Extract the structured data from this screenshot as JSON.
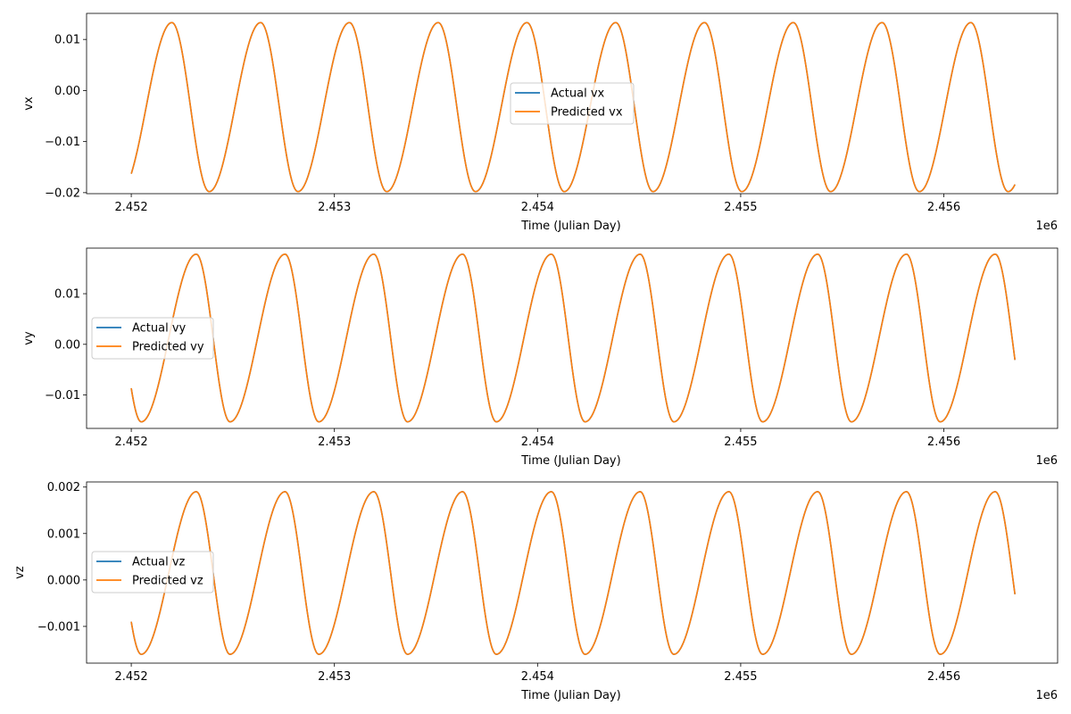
{
  "colors": {
    "actual": "#1f77b4",
    "predicted": "#ff7f0e",
    "axis": "#000000",
    "legend_border": "#cccccc",
    "background": "#ffffff"
  },
  "chart_data": [
    {
      "type": "line",
      "title": "",
      "xlabel": "Time (Julian Day)",
      "ylabel": "vx",
      "x_offset_label": "1e6",
      "x_ticks": [
        2.452,
        2.453,
        2.454,
        2.455,
        2.456
      ],
      "x_tick_labels": [
        "2.452",
        "2.453",
        "2.454",
        "2.455",
        "2.456"
      ],
      "y_ticks": [
        -0.02,
        -0.01,
        0.0,
        0.01
      ],
      "y_tick_labels": [
        "−0.02",
        "−0.01",
        "0.00",
        "0.01"
      ],
      "xlim": [
        2.45178,
        2.45656
      ],
      "ylim": [
        -0.0202,
        0.0151
      ],
      "legend": "center",
      "grid": false,
      "series": [
        {
          "name": "Actual vx",
          "color": "#1f77b4"
        },
        {
          "name": "Predicted vx",
          "color": "#ff7f0e"
        }
      ],
      "signal": {
        "x_start": 2.452,
        "x_end": 2.45635,
        "period": 0.000437,
        "min": -0.0198,
        "max": 0.0133,
        "first_max_x": 2.4522,
        "end_value": -0.0193
      }
    },
    {
      "type": "line",
      "title": "",
      "xlabel": "Time (Julian Day)",
      "ylabel": "vy",
      "x_offset_label": "1e6",
      "x_ticks": [
        2.452,
        2.453,
        2.454,
        2.455,
        2.456
      ],
      "x_tick_labels": [
        "2.452",
        "2.453",
        "2.454",
        "2.455",
        "2.456"
      ],
      "y_ticks": [
        -0.01,
        0.0,
        0.01
      ],
      "y_tick_labels": [
        "−0.01",
        "0.00",
        "0.01"
      ],
      "xlim": [
        2.45178,
        2.45656
      ],
      "ylim": [
        -0.0166,
        0.019
      ],
      "legend": "center-left",
      "grid": false,
      "series": [
        {
          "name": "Actual vy",
          "color": "#1f77b4"
        },
        {
          "name": "Predicted vy",
          "color": "#ff7f0e"
        }
      ],
      "signal": {
        "x_start": 2.452,
        "x_end": 2.45635,
        "period": 0.000437,
        "min": -0.0153,
        "max": 0.0178,
        "first_max_x": 2.45232,
        "start_value": -0.0089,
        "end_value": -0.0027
      }
    },
    {
      "type": "line",
      "title": "",
      "xlabel": "Time (Julian Day)",
      "ylabel": "vz",
      "x_offset_label": "1e6",
      "x_ticks": [
        2.452,
        2.453,
        2.454,
        2.455,
        2.456
      ],
      "x_tick_labels": [
        "2.452",
        "2.453",
        "2.454",
        "2.455",
        "2.456"
      ],
      "y_ticks": [
        -0.001,
        0.0,
        0.001,
        0.002
      ],
      "y_tick_labels": [
        "−0.001",
        "0.000",
        "0.001",
        "0.002"
      ],
      "xlim": [
        2.45178,
        2.45656
      ],
      "ylim": [
        -0.00179,
        0.00211
      ],
      "legend": "center-left",
      "grid": false,
      "series": [
        {
          "name": "Actual vz",
          "color": "#1f77b4"
        },
        {
          "name": "Predicted vz",
          "color": "#ff7f0e"
        }
      ],
      "signal": {
        "x_start": 2.452,
        "x_end": 2.45635,
        "period": 0.000437,
        "min": -0.0016,
        "max": 0.0019,
        "first_max_x": 2.45232,
        "start_value": -0.00087,
        "end_value": -0.0002
      }
    }
  ]
}
